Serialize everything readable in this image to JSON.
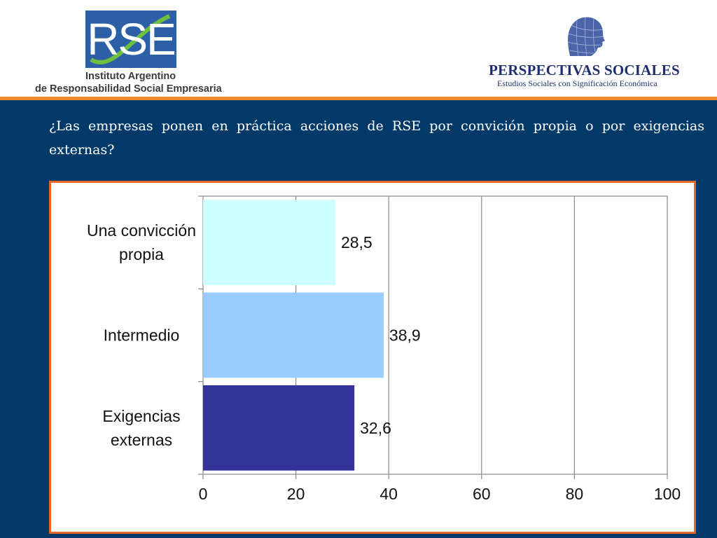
{
  "header": {
    "rse_logo_text": "RSE",
    "rse_name_line1": "Instituto Argentino",
    "rse_name_line2": "de Responsabilidad Social Empresaria",
    "ps_title": "PERSPECTIVAS SOCIALES",
    "ps_subtitle": "Estudios Sociales con Significación Económica"
  },
  "question": "¿Las empresas ponen en práctica acciones de RSE por convición propia o por exigencias externas?",
  "colors": {
    "navy": "#013a68",
    "orange": "#f28a2c",
    "frame_border": "#e8662a",
    "bar_1": "#ccffff",
    "bar_2": "#99ccff",
    "bar_3": "#333399"
  },
  "chart_data": {
    "type": "bar",
    "orientation": "horizontal",
    "categories": [
      "Una convicción propia",
      "Intermedio",
      "Exigencias externas"
    ],
    "category_lines": [
      [
        "Una convicción",
        "propia"
      ],
      [
        "Intermedio"
      ],
      [
        "Exigencias",
        "externas"
      ]
    ],
    "values": [
      28.5,
      38.9,
      32.6
    ],
    "value_labels": [
      "28,5",
      "38,9",
      "32,6"
    ],
    "bar_colors": [
      "#ccffff",
      "#99ccff",
      "#333399"
    ],
    "xlim": [
      0,
      100
    ],
    "xticks": [
      0,
      20,
      40,
      60,
      80,
      100
    ],
    "xtick_labels": [
      "0",
      "20",
      "40",
      "60",
      "80",
      "100"
    ],
    "grid": "vertical",
    "legend": "none"
  }
}
